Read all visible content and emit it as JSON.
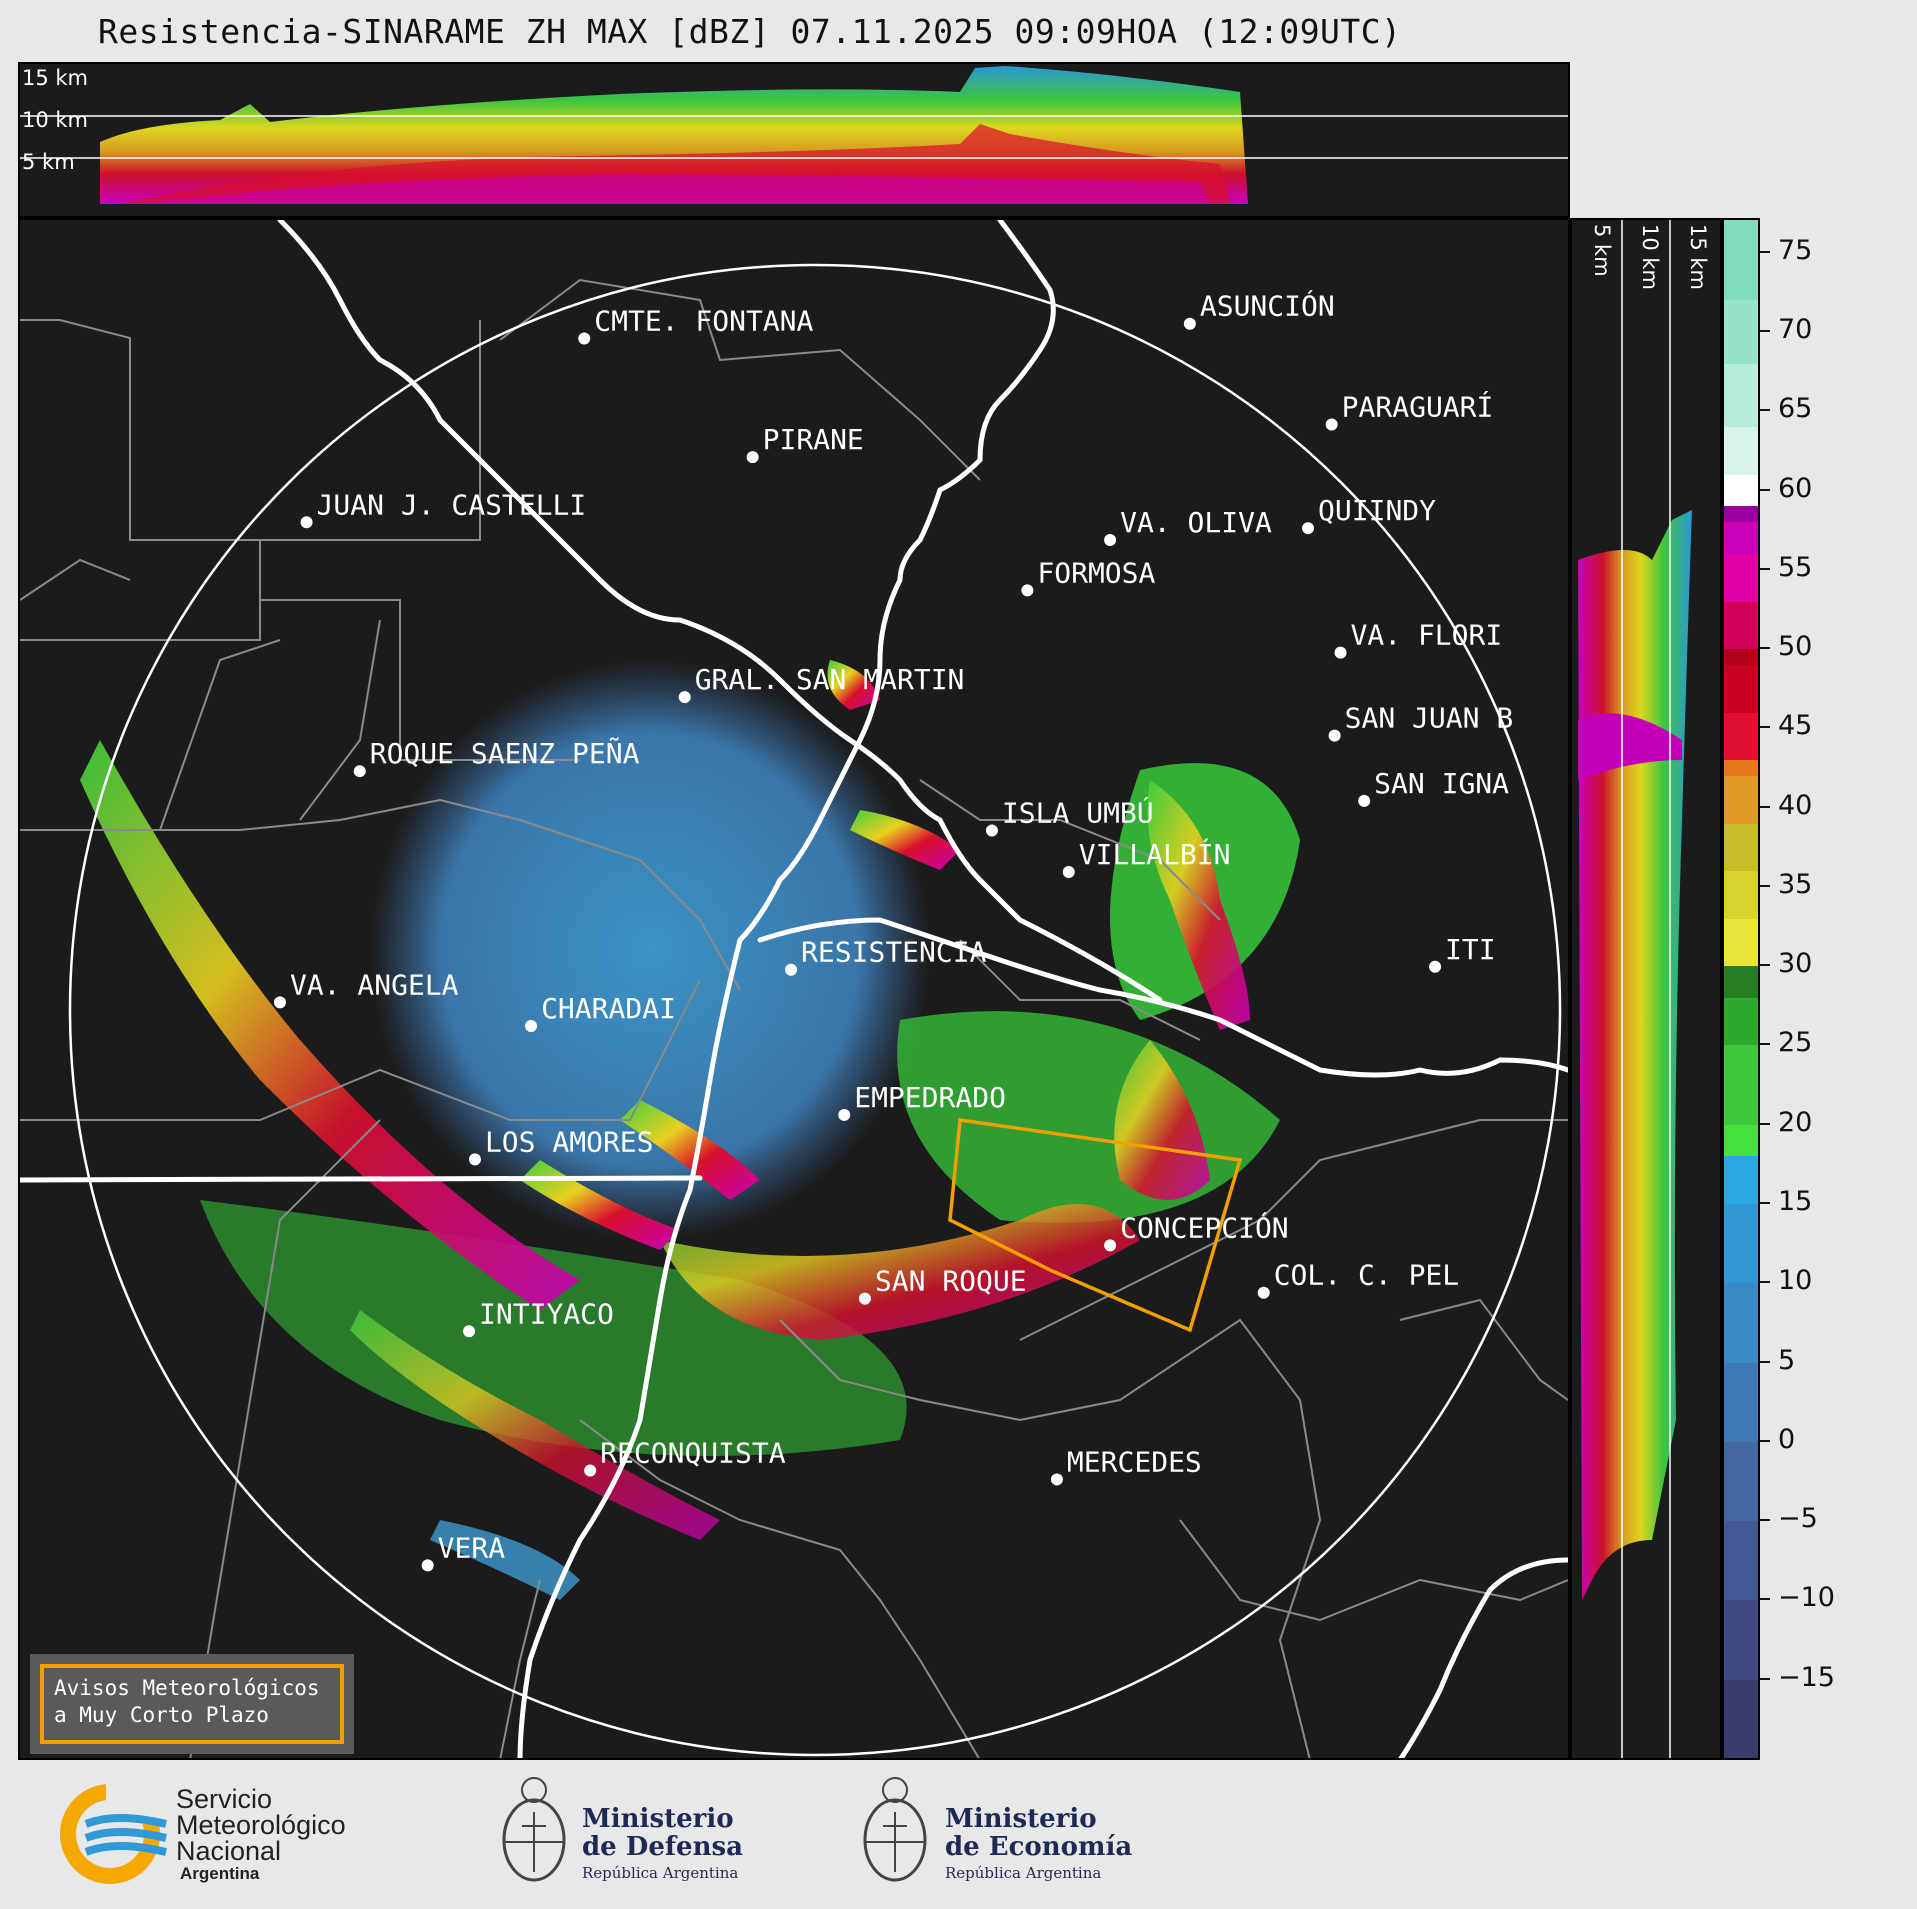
{
  "title": "Resistencia-SINARAME ZH MAX [dBZ] 07.11.2025 09:09HOA (12:09UTC)",
  "altitude_labels": [
    "15 km",
    "10 km",
    "5 km"
  ],
  "cities": [
    {
      "name": "CMTE. FONTANA",
      "lon": -59.68,
      "lat": -25.33
    },
    {
      "name": "ASUNCIÓN",
      "lon": -57.63,
      "lat": -25.28
    },
    {
      "name": "PARAGUARÍ",
      "lon": -57.15,
      "lat": -25.62
    },
    {
      "name": "PIRANE",
      "lon": -59.11,
      "lat": -25.73
    },
    {
      "name": "JUAN J. CASTELLI",
      "lon": -60.62,
      "lat": -25.95
    },
    {
      "name": "VA. OLIVA",
      "lon": -57.9,
      "lat": -26.01
    },
    {
      "name": "QUIINDY",
      "lon": -57.23,
      "lat": -25.97
    },
    {
      "name": "FORMOSA",
      "lon": -58.18,
      "lat": -26.18
    },
    {
      "name": "VA. FLORI",
      "lon": -57.12,
      "lat": -26.39
    },
    {
      "name": "GRAL. SAN MARTIN",
      "lon": -59.34,
      "lat": -26.54
    },
    {
      "name": "SAN JUAN B",
      "lon": -57.14,
      "lat": -26.67
    },
    {
      "name": "ROQUE SAENZ PEÑA",
      "lon": -60.44,
      "lat": -26.79
    },
    {
      "name": "SAN IGNA",
      "lon": -57.04,
      "lat": -26.89
    },
    {
      "name": "ISLA UMBÚ",
      "lon": -58.3,
      "lat": -26.99
    },
    {
      "name": "VILLALBÍN",
      "lon": -58.04,
      "lat": -27.13
    },
    {
      "name": "RESISTENCIA",
      "lon": -58.98,
      "lat": -27.46
    },
    {
      "name": "VA. ANGELA",
      "lon": -60.71,
      "lat": -27.57
    },
    {
      "name": "CHARADAI",
      "lon": -59.86,
      "lat": -27.65
    },
    {
      "name": "ITI",
      "lon": -56.8,
      "lat": -27.45
    },
    {
      "name": "EMPEDRADO",
      "lon": -58.8,
      "lat": -27.95
    },
    {
      "name": "LOS AMORES",
      "lon": -60.05,
      "lat": -28.1
    },
    {
      "name": "CONCEPCIÓN",
      "lon": -57.9,
      "lat": -28.39
    },
    {
      "name": "COL. C. PEL",
      "lon": -57.38,
      "lat": -28.55
    },
    {
      "name": "SAN ROQUE",
      "lon": -58.73,
      "lat": -28.57
    },
    {
      "name": "INTIYACO",
      "lon": -60.07,
      "lat": -28.68
    },
    {
      "name": "RECONQUISTA",
      "lon": -59.66,
      "lat": -29.15
    },
    {
      "name": "MERCEDES",
      "lon": -58.08,
      "lat": -29.18
    },
    {
      "name": "VERA",
      "lon": -60.21,
      "lat": -29.47
    }
  ],
  "colorbar": {
    "ticks": [
      "75",
      "70",
      "65",
      "60",
      "55",
      "50",
      "45",
      "40",
      "35",
      "30",
      "25",
      "20",
      "15",
      "10",
      "5",
      "0",
      "−5",
      "−10",
      "−15"
    ],
    "min": -20,
    "max": 77
  },
  "aviso": {
    "line1": "Avisos Meteorológicos",
    "line2": "a Muy Corto Plazo"
  },
  "logos": {
    "smn": {
      "line1": "Servicio",
      "line2": "Meteorológico",
      "line3": "Nacional",
      "line4": "Argentina"
    },
    "defensa": {
      "line1": "Ministerio",
      "line2": "de Defensa",
      "line3": "República Argentina"
    },
    "economia": {
      "line1": "Ministerio",
      "line2": "de Economía",
      "line3": "República Argentina"
    }
  },
  "colors": {
    "panel_bg": "#1b1b1b",
    "warning_outline": "#f5a000",
    "smn_blue": "#2f9ad6",
    "smn_yellow": "#f5a800"
  }
}
